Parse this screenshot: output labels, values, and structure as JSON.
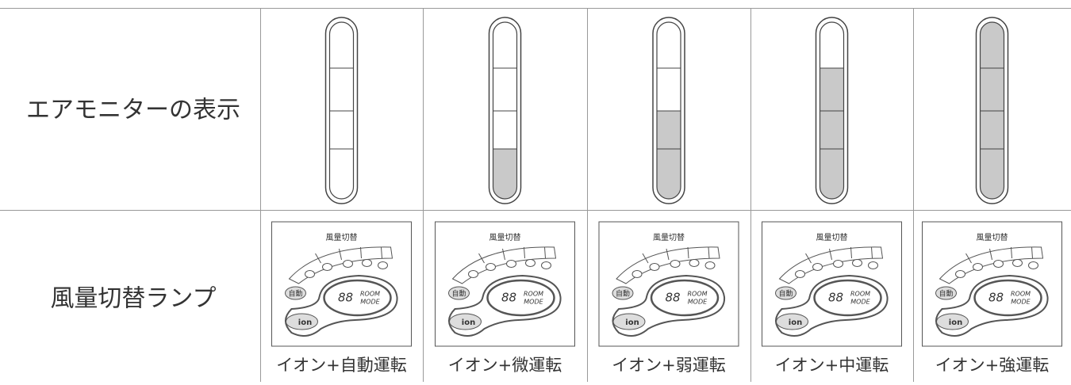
{
  "rows": {
    "air_monitor": "エアモニターの表示",
    "fan_lamp": "風量切替ランプ"
  },
  "air_monitor_levels": [
    0,
    1,
    2,
    3,
    4
  ],
  "panel": {
    "title": "風量切替",
    "auto": "自動",
    "digits": "88",
    "room": "ROOM",
    "mode": "MODE",
    "ion": "ion"
  },
  "captions": [
    "イオン+自動運転",
    "イオン+微運転",
    "イオン+弱運転",
    "イオン+中運転",
    "イオン+強運転"
  ]
}
